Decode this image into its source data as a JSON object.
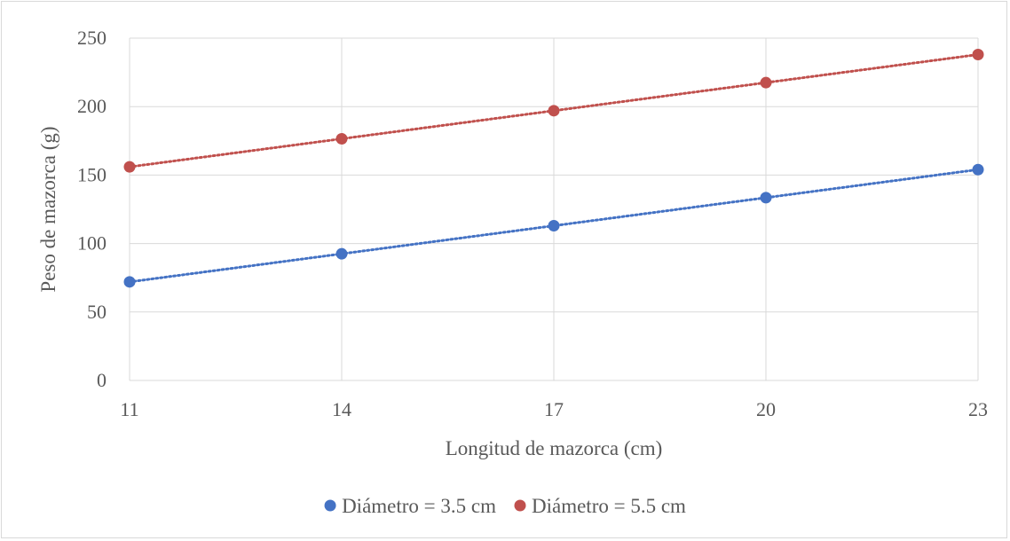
{
  "chart_data": {
    "type": "scatter",
    "title": "",
    "xlabel": "Longitud de mazorca (cm)",
    "ylabel": "Peso de mazorca (g)",
    "x_ticks": [
      11,
      14,
      17,
      20,
      23
    ],
    "y_ticks": [
      0,
      50,
      100,
      150,
      200,
      250
    ],
    "xlim": [
      11,
      23
    ],
    "ylim": [
      0,
      250
    ],
    "grid": true,
    "legend_position": "bottom",
    "trendline": "linear, dotted",
    "series": [
      {
        "name": "Diámetro = 3.5 cm",
        "color": "#4472c4",
        "x": [
          11,
          14,
          17,
          20,
          23
        ],
        "y": [
          72,
          92.5,
          113,
          133.5,
          154
        ]
      },
      {
        "name": "Diámetro = 5.5 cm",
        "color": "#c0504d",
        "x": [
          11,
          14,
          17,
          20,
          23
        ],
        "y": [
          156,
          176.5,
          197,
          217.5,
          238
        ]
      }
    ]
  }
}
